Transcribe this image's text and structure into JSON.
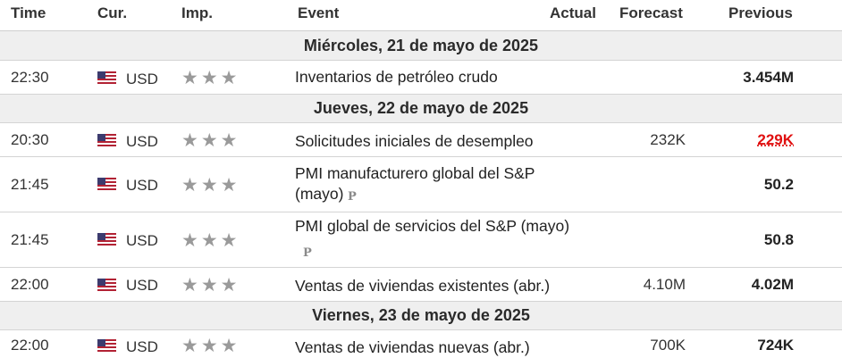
{
  "header": {
    "time": "Time",
    "cur": "Cur.",
    "imp": "Imp.",
    "event": "Event",
    "actual": "Actual",
    "forecast": "Forecast",
    "previous": "Previous"
  },
  "dates": [
    "Miércoles, 21 de mayo de 2025",
    "Jueves, 22 de mayo de 2025",
    "Viernes, 23 de mayo de 2025"
  ],
  "rows": [
    {
      "time": "22:30",
      "currency": "USD",
      "importance_stars": 3,
      "event": "Inventarios de petróleo crudo",
      "actual": "",
      "forecast": "",
      "previous": "3.454M"
    },
    {
      "time": "20:30",
      "currency": "USD",
      "importance_stars": 3,
      "event": "Solicitudes iniciales de desempleo",
      "actual": "",
      "forecast": "232K",
      "previous": "229K"
    },
    {
      "time": "21:45",
      "currency": "USD",
      "importance_stars": 3,
      "event": "PMI manufacturero global del S&P (mayo)",
      "actual": "",
      "forecast": "",
      "previous": "50.2"
    },
    {
      "time": "21:45",
      "currency": "USD",
      "importance_stars": 3,
      "event": "PMI global de servicios del S&P (mayo)",
      "actual": "",
      "forecast": "",
      "previous": "50.8"
    },
    {
      "time": "22:00",
      "currency": "USD",
      "importance_stars": 3,
      "event": "Ventas de viviendas existentes (abr.)",
      "actual": "",
      "forecast": "4.10M",
      "previous": "4.02M"
    },
    {
      "time": "22:00",
      "currency": "USD",
      "importance_stars": 3,
      "event": "Ventas de viviendas nuevas (abr.)",
      "actual": "",
      "forecast": "700K",
      "previous": "724K"
    }
  ],
  "colors": {
    "previous_worse": "#e01010",
    "star_inactive": "#9a9a9a",
    "date_band": "#efefef"
  },
  "icons": {
    "flag": "us-flag-icon",
    "star": "star-icon",
    "preliminary_marker": "p-icon"
  },
  "star_glyph": "★",
  "preliminary_glyph": "P"
}
